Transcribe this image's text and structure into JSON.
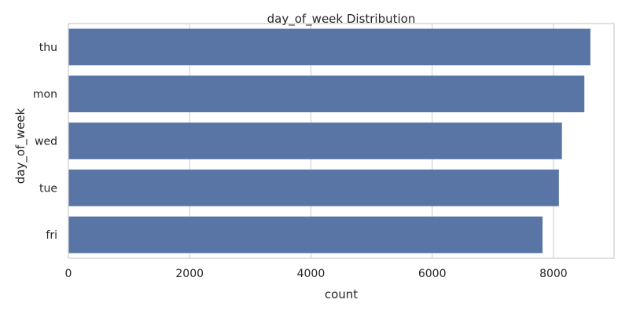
{
  "chart_data": {
    "type": "bar",
    "orientation": "horizontal",
    "title": "day_of_week Distribution",
    "xlabel": "count",
    "ylabel": "day_of_week",
    "categories": [
      "thu",
      "mon",
      "wed",
      "tue",
      "fri"
    ],
    "values": [
      8610,
      8510,
      8140,
      8090,
      7820
    ],
    "xlim": [
      0,
      9000
    ],
    "xticks": [
      0,
      2000,
      4000,
      6000,
      8000
    ],
    "xtick_labels": [
      "0",
      "2000",
      "4000",
      "6000",
      "8000"
    ],
    "grid": "vertical",
    "bar_color": "#5875a5"
  }
}
